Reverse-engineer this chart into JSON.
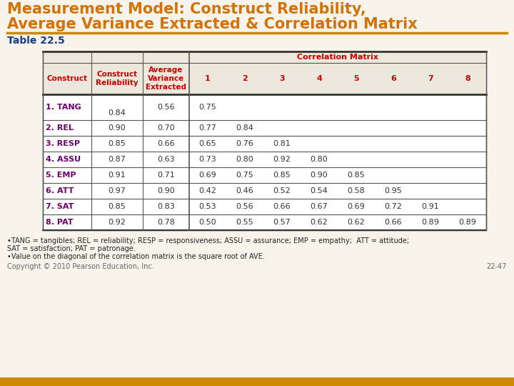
{
  "title_line1": "Measurement Model: Construct Reliability,",
  "title_line2": "Average Variance Extracted & Correlation Matrix",
  "subtitle": "Table 22.5",
  "title_color": "#D4720A",
  "subtitle_color": "#1A3A8A",
  "bg_color": "#F8F4EC",
  "col_header_color": "#CC0000",
  "rows": [
    [
      "1. TANG",
      "0.84",
      "0.56",
      "0.75",
      "",
      "",
      "",
      "",
      "",
      "",
      ""
    ],
    [
      "2. REL",
      "0.90",
      "0.70",
      "0.77",
      "0.84",
      "",
      "",
      "",
      "",
      "",
      ""
    ],
    [
      "3. RESP",
      "0.85",
      "0.66",
      "0.65",
      "0.76",
      "0.81",
      "",
      "",
      "",
      "",
      ""
    ],
    [
      "4. ASSU",
      "0.87",
      "0.63",
      "0.73",
      "0.80",
      "0.92",
      "0.80",
      "",
      "",
      "",
      ""
    ],
    [
      "5. EMP",
      "0.91",
      "0.71",
      "0.69",
      "0.75",
      "0.85",
      "0.90",
      "0.85",
      "",
      "",
      ""
    ],
    [
      "6. ATT",
      "0.97",
      "0.90",
      "0.42",
      "0.46",
      "0.52",
      "0.54",
      "0.58",
      "0.95",
      "",
      ""
    ],
    [
      "7. SAT",
      "0.85",
      "0.83",
      "0.53",
      "0.56",
      "0.66",
      "0.67",
      "0.69",
      "0.72",
      "0.91",
      ""
    ],
    [
      "8. PAT",
      "0.92",
      "0.78",
      "0.50",
      "0.55",
      "0.57",
      "0.62",
      "0.62",
      "0.66",
      "0.89",
      "0.89"
    ]
  ],
  "row_label_color": "#6B006B",
  "footnote1": "•TANG = tangibles; REL = reliability; RESP = responsiveness; ASSU = assurance; EMP = empathy;  ATT = attitude;",
  "footnote2": "SAT = satisfaction; PAT = patronage.",
  "footnote3": "•Value on the diagonal of the correlation matrix is the square root of AVE.",
  "copyright": "Copyright © 2010 Pearson Education, Inc.",
  "page_num": "22-47",
  "divider_color": "#CC8800",
  "bottom_bar_color": "#CC8800",
  "table_border_color": "#555555",
  "table_thick_color": "#333333",
  "table_bg": "#FFFFFF",
  "header_bg": "#EEE8DC"
}
